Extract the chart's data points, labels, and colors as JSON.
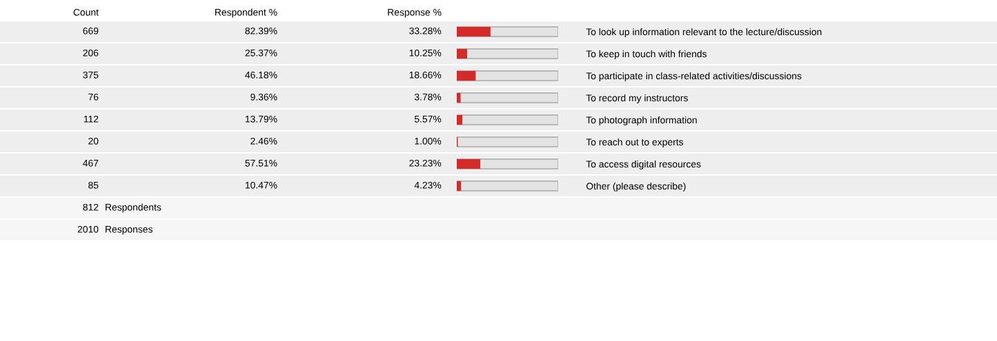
{
  "chart_data": {
    "type": "bar",
    "orientation": "horizontal",
    "categories": [
      "To look up information relevant to the lecture/discussion",
      "To keep in touch with friends",
      "To participate in class-related activities/discussions",
      "To record my instructors",
      "To photograph information",
      "To reach out to experts",
      "To access digital resources",
      "Other (please describe)"
    ],
    "series": [
      {
        "name": "Response %",
        "color": "#d42a2a",
        "values": [
          33.28,
          10.25,
          18.66,
          3.78,
          5.57,
          1.0,
          23.23,
          4.23
        ],
        "value_labels": [
          "33.28%",
          "10.25%",
          "18.66%",
          "3.78%",
          "5.57%",
          "1.00%",
          "23.23%",
          "4.23%"
        ]
      }
    ],
    "xlim": [
      0,
      100
    ],
    "tick_labels": "y",
    "grid": false,
    "legend": false,
    "annotations": [
      "Count",
      "Respondent %",
      "669",
      "82.39%",
      "206",
      "25.37%",
      "375",
      "46.18%",
      "76",
      "9.36%",
      "112",
      "13.79%",
      "20",
      "2.46%",
      "467",
      "57.51%",
      "85",
      "10.47%",
      "812",
      "Respondents",
      "2010",
      "Responses"
    ]
  }
}
